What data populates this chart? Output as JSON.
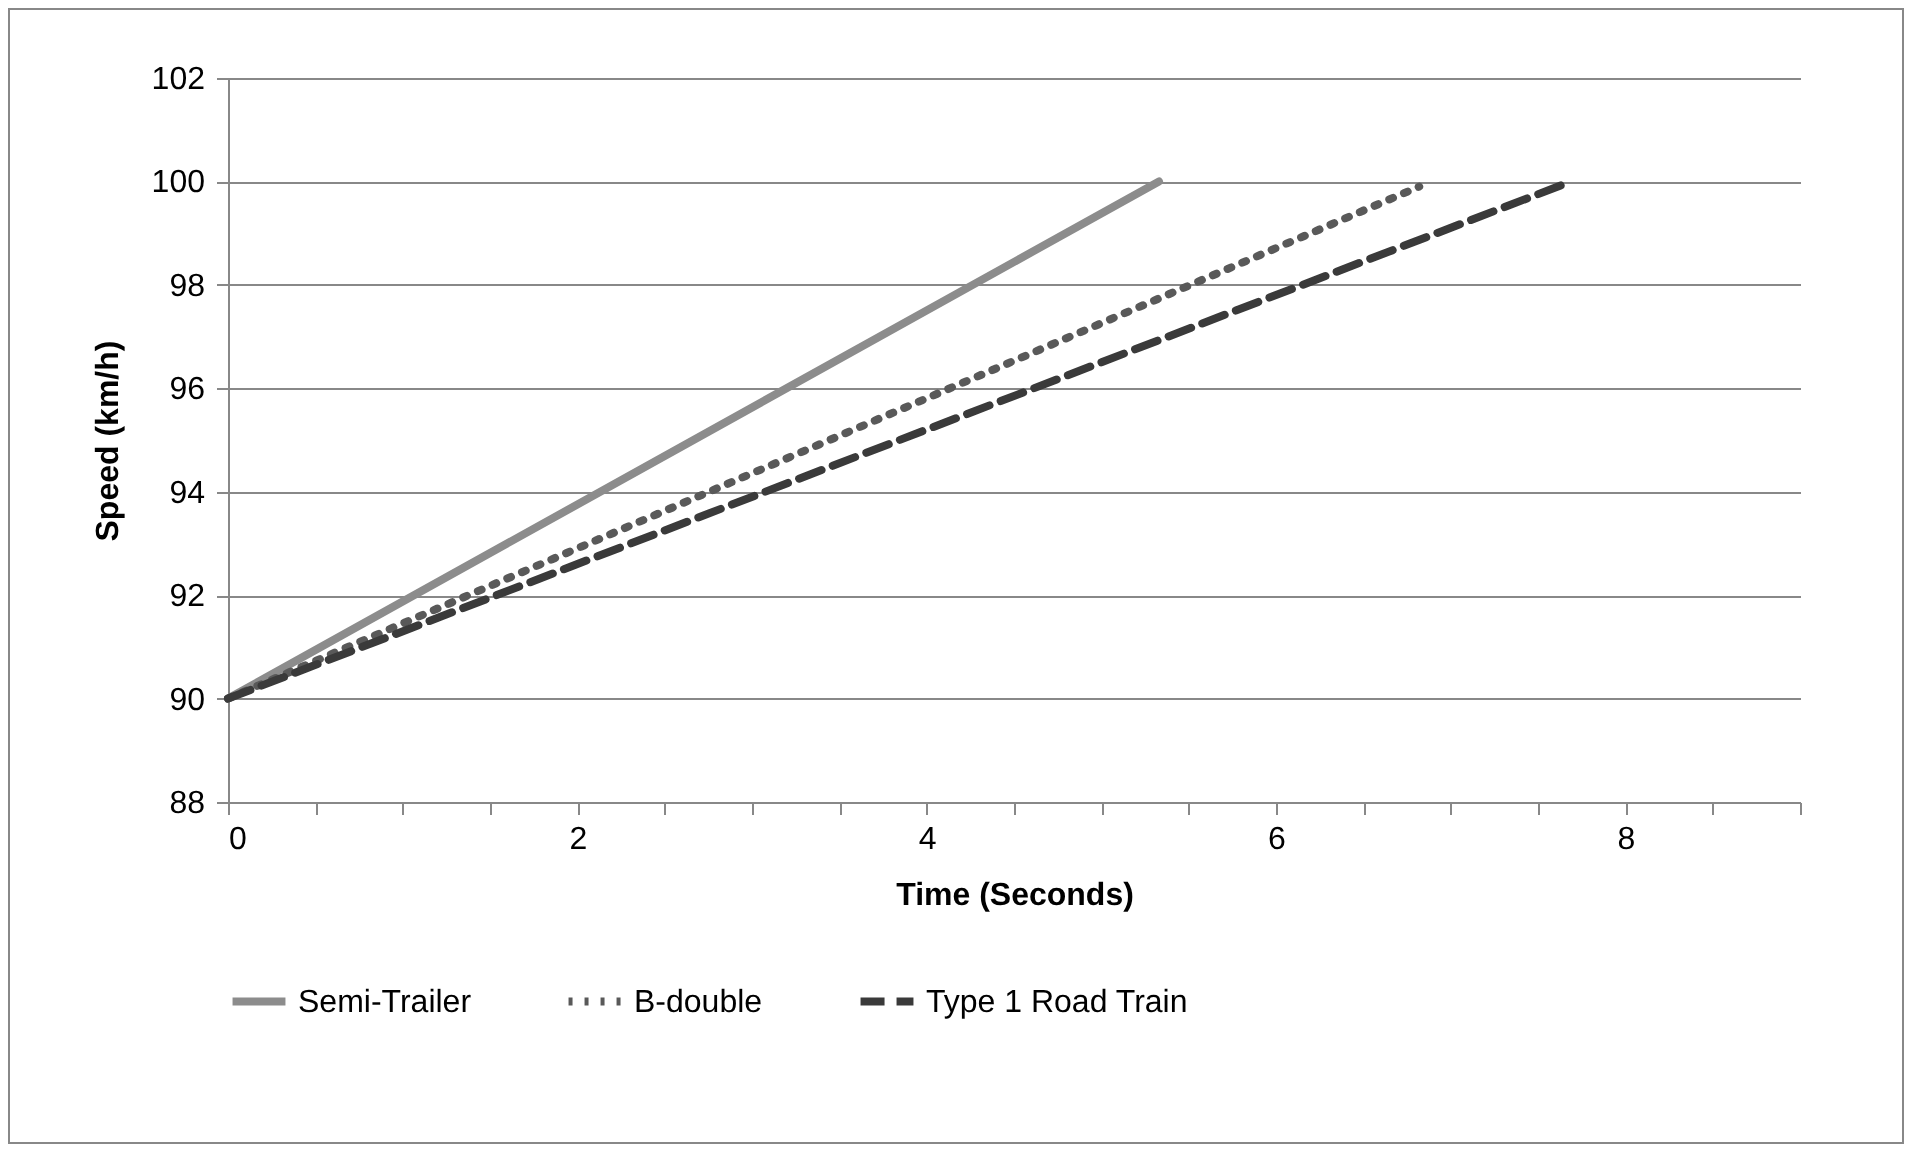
{
  "chart_data": {
    "type": "line",
    "xlabel": "Time (Seconds)",
    "ylabel": "Speed (km/h)",
    "xlim": [
      0,
      9
    ],
    "xticks": [
      0,
      {
        "value": 0.5,
        "label": null
      },
      {
        "value": 1,
        "label": null
      },
      {
        "value": 1.5,
        "label": null
      },
      2,
      {
        "value": 2.5,
        "label": null
      },
      {
        "value": 3,
        "label": null
      },
      {
        "value": 3.5,
        "label": null
      },
      4,
      {
        "value": 4.5,
        "label": null
      },
      {
        "value": 5,
        "label": null
      },
      {
        "value": 5.5,
        "label": null
      },
      6,
      {
        "value": 6.5,
        "label": null
      },
      {
        "value": 7,
        "label": null
      },
      {
        "value": 7.5,
        "label": null
      },
      8,
      {
        "value": 8.5,
        "label": null
      },
      {
        "value": 9,
        "label": null
      }
    ],
    "ylim": [
      88,
      102
    ],
    "yticks": [
      88,
      90,
      92,
      94,
      96,
      98,
      100,
      102
    ],
    "grid": "y",
    "legend": "bottom",
    "marker": "none",
    "series": [
      {
        "name": "Semi-Trailer",
        "color": "#8c8c8c",
        "line_style": "solid",
        "x": [
          0,
          5.33
        ],
        "values": [
          90,
          100
        ]
      },
      {
        "name": "B-double",
        "color": "#595959",
        "line_style": "dotted",
        "x": [
          0,
          6.82
        ],
        "values": [
          90,
          99.9
        ]
      },
      {
        "name": "Type 1 Road Train",
        "color": "#3a3a3a",
        "line_style": "dashed",
        "x": [
          0,
          7.69
        ],
        "values": [
          90,
          100
        ]
      }
    ]
  }
}
